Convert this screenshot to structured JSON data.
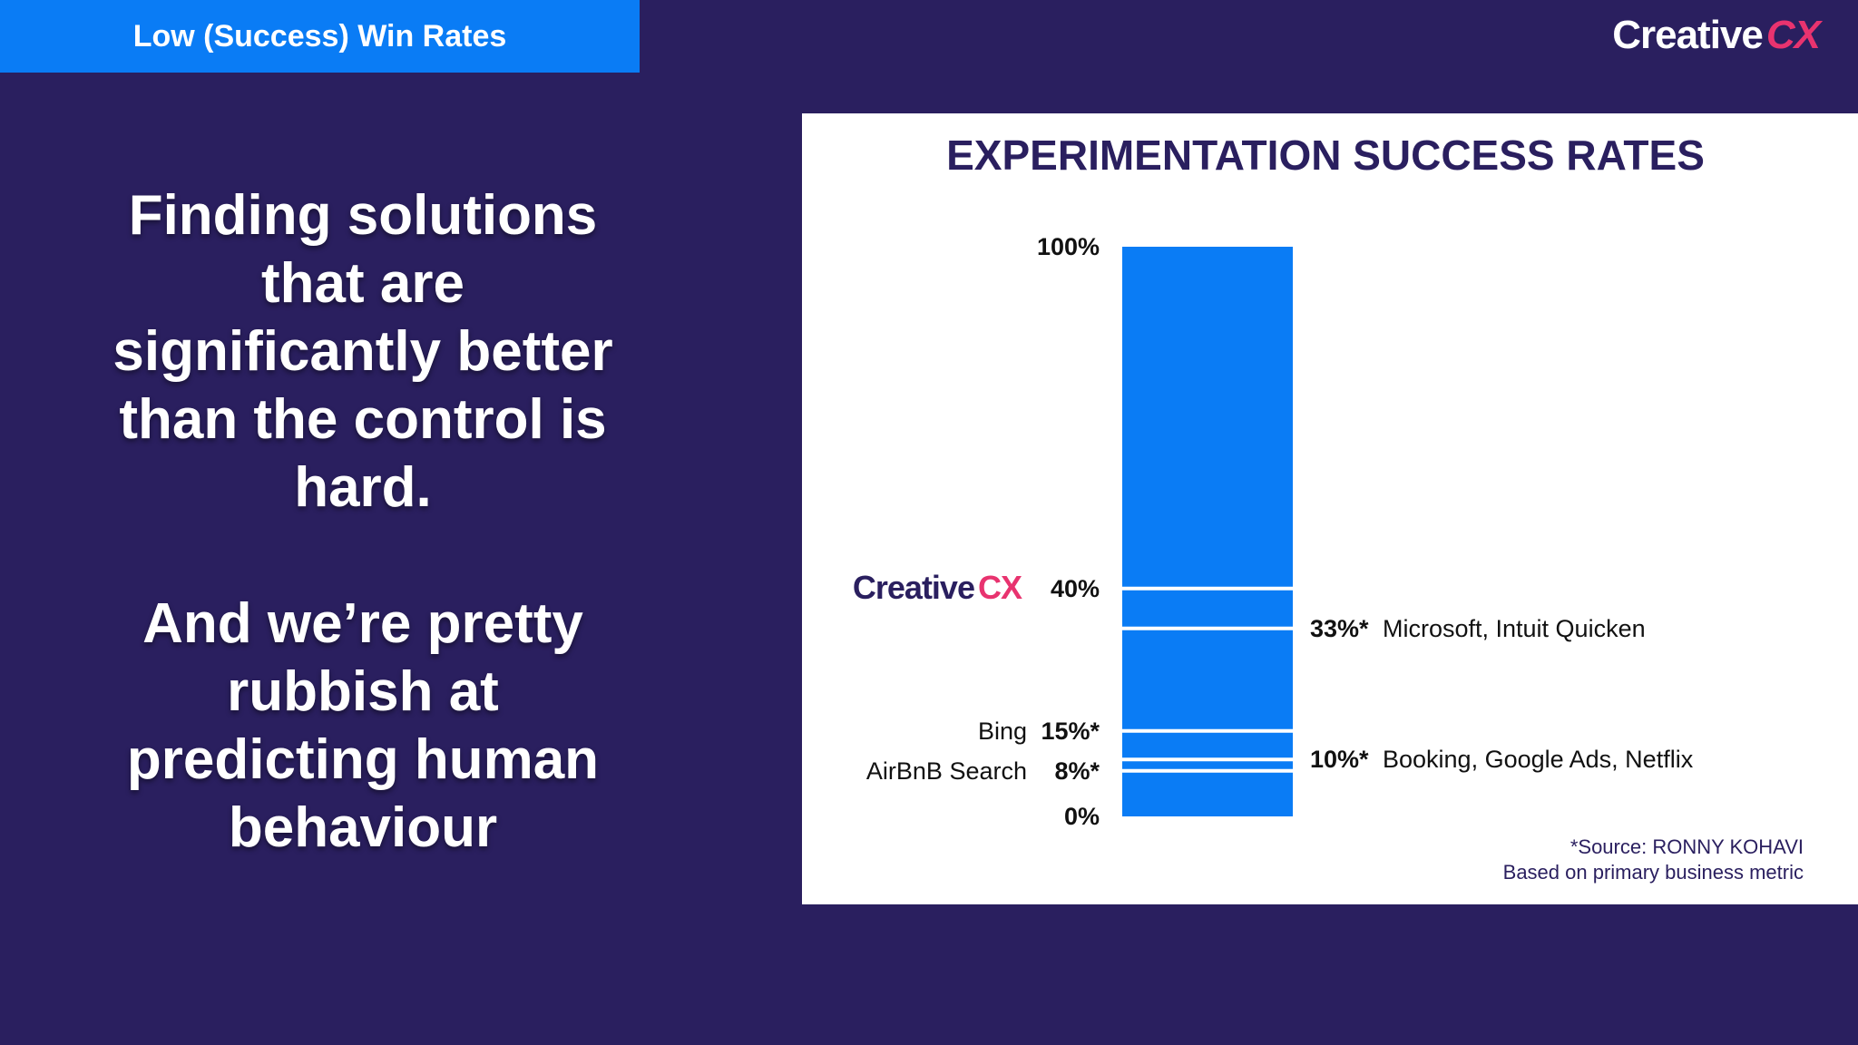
{
  "header": {
    "title": "Low (Success) Win Rates"
  },
  "brand": {
    "word": "Creative",
    "mark": "CX",
    "mark_color": "#e8336f"
  },
  "message": {
    "paragraph1": "Finding solutions that are significantly better than the control is hard.",
    "paragraph2": "And we’re pretty rubbish at predicting human behaviour"
  },
  "colors": {
    "background": "#2a1f5f",
    "accent": "#0a7cf5",
    "bar": "#0a7cf5",
    "brand_pink": "#e8336f"
  },
  "chart_data": {
    "type": "bar",
    "title": "EXPERIMENTATION SUCCESS RATES",
    "xlabel": "",
    "ylabel": "",
    "ylim": [
      0,
      100
    ],
    "grid": false,
    "axis_labels": [
      {
        "value": 100,
        "label": "100%"
      },
      {
        "value": 0,
        "label": "0%"
      }
    ],
    "markers": [
      {
        "value": 40,
        "pct_label": "40%",
        "side": "left",
        "org": "Creative CX",
        "org_is_logo": true
      },
      {
        "value": 33,
        "pct_label": "33%*",
        "side": "right",
        "org": "Microsoft, Intuit Quicken"
      },
      {
        "value": 15,
        "pct_label": "15%*",
        "side": "left",
        "org": "Bing"
      },
      {
        "value": 10,
        "pct_label": "10%*",
        "side": "right",
        "org": "Booking, Google Ads, Netflix"
      },
      {
        "value": 8,
        "pct_label": "8%*",
        "side": "left",
        "org": "AirBnB Search"
      }
    ]
  },
  "source": {
    "line1": "*Source: RONNY KOHAVI",
    "line2": "Based on primary business metric"
  }
}
